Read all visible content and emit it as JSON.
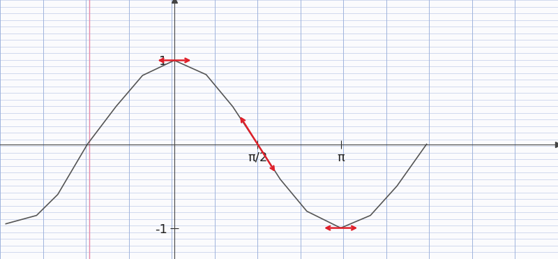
{
  "chart_data": {
    "type": "line",
    "x": [
      -3.18,
      -2.6,
      -2.2,
      -1.64,
      -1.1,
      -0.6,
      0,
      0.6,
      1.1,
      1.57,
      2.0,
      2.5,
      3.14,
      3.7,
      4.2,
      4.76
    ],
    "values": [
      -0.95,
      -0.85,
      -0.6,
      0,
      0.45,
      0.82,
      1,
      0.83,
      0.45,
      0,
      -0.42,
      -0.8,
      -1,
      -0.85,
      -0.5,
      0
    ],
    "color": "#555555",
    "xlim": [
      -3.29,
      7.24
    ],
    "ylim": [
      -1.37,
      1.72
    ],
    "xticks": [
      {
        "value": 1.571,
        "label": "π/2"
      },
      {
        "value": 3.142,
        "label": "π"
      }
    ],
    "yticks": [
      1,
      -1
    ],
    "tangents": [
      {
        "x": 0,
        "y": 1,
        "slope": 0
      },
      {
        "x": 1.571,
        "y": 0,
        "slope": -1
      },
      {
        "x": 3.142,
        "y": -1,
        "slope": 0
      }
    ]
  }
}
